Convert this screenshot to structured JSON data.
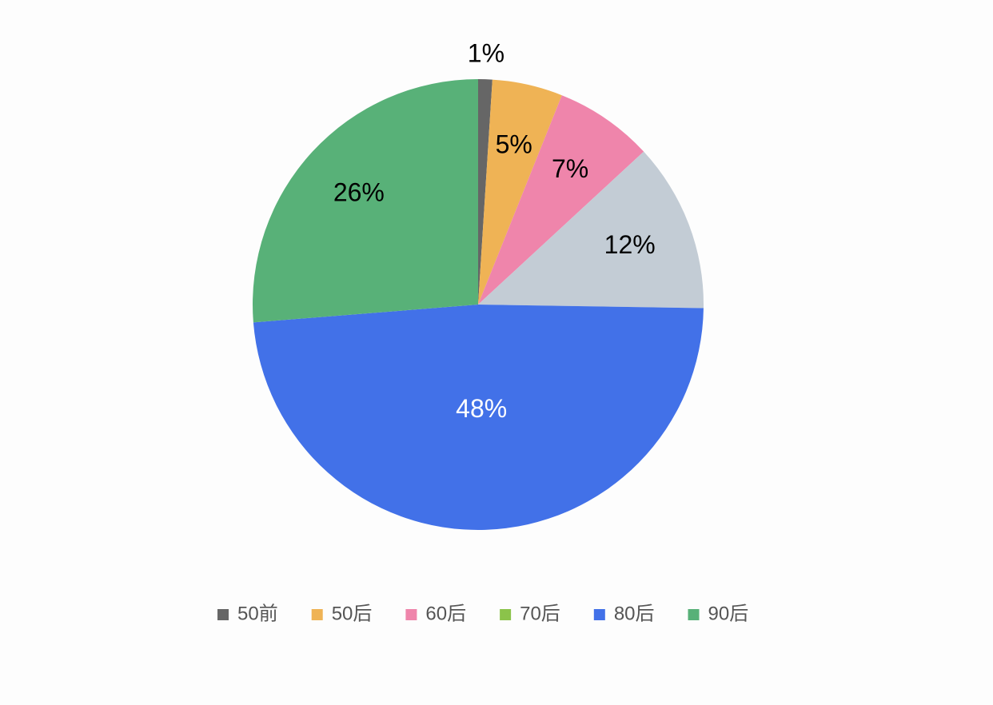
{
  "chart_data": {
    "type": "pie",
    "categories": [
      "50前",
      "50后",
      "60后",
      "70后",
      "80后",
      "90后"
    ],
    "values": [
      1,
      5,
      7,
      12,
      48,
      26
    ],
    "value_labels": [
      "1%",
      "5%",
      "7%",
      "12%",
      "48%",
      "26%"
    ],
    "colors": [
      "#666666",
      "#efb355",
      "#ef85ab",
      "#c3ccd5",
      "#4271e8",
      "#58b178"
    ],
    "legend_colors": [
      "#666666",
      "#efb355",
      "#ef85ab",
      "#8bc34a",
      "#4271e8",
      "#58b178"
    ],
    "legend": "bottom"
  }
}
